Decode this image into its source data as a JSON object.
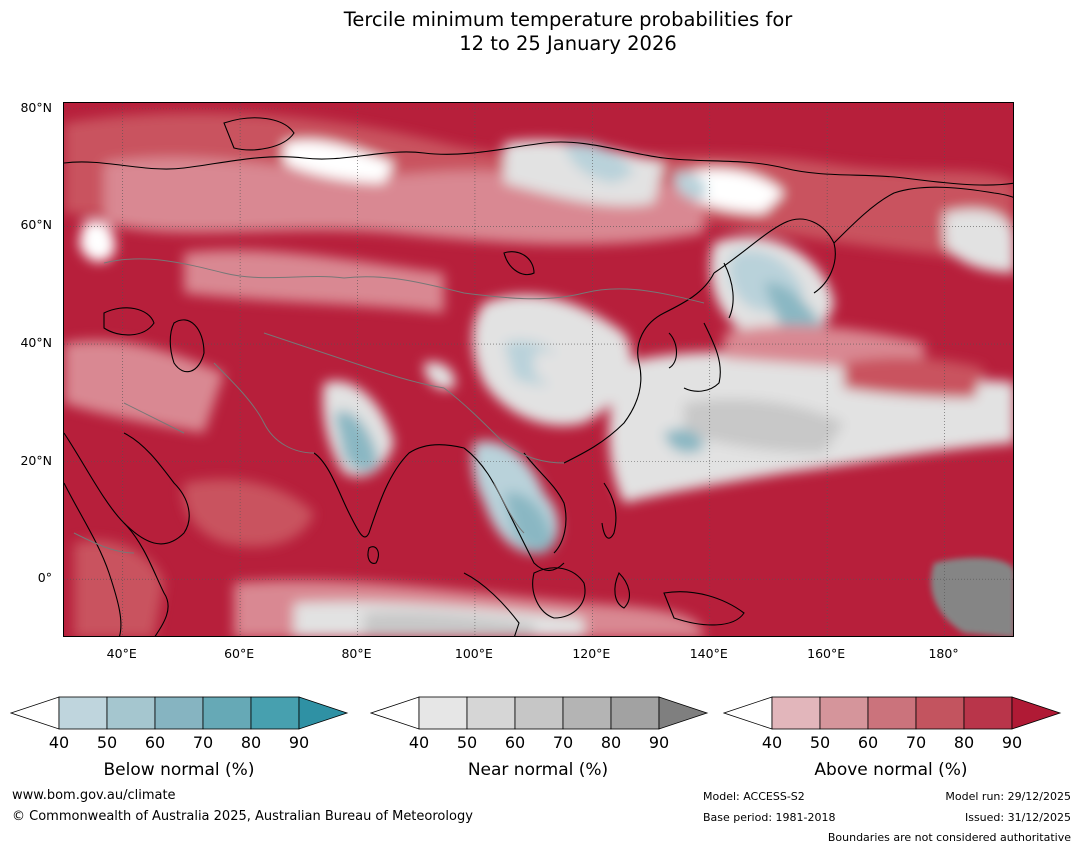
{
  "title": {
    "line1": "Tercile minimum temperature probabilities for",
    "line2": "12 to 25 January 2026"
  },
  "map": {
    "lon_range": [
      30,
      192
    ],
    "lat_range": [
      -10,
      81
    ],
    "lat_ticks": [
      "80°N",
      "60°N",
      "40°N",
      "20°N",
      "0°"
    ],
    "lon_ticks": [
      "40°E",
      "60°E",
      "80°E",
      "100°E",
      "120°E",
      "140°E",
      "160°E",
      "180°"
    ]
  },
  "colorbars": [
    {
      "name": "below",
      "title": "Below normal (%)",
      "ticks": [
        "40",
        "50",
        "60",
        "70",
        "80",
        "90"
      ],
      "colors": [
        "#bfd5dd",
        "#a5c6cf",
        "#86b4c1",
        "#66a9b6",
        "#47a0af",
        "#2f91a4"
      ]
    },
    {
      "name": "near",
      "title": "Near normal (%)",
      "ticks": [
        "40",
        "50",
        "60",
        "70",
        "80",
        "90"
      ],
      "colors": [
        "#e6e6e6",
        "#d6d6d6",
        "#c6c6c6",
        "#b4b4b4",
        "#a2a2a2",
        "#7f7f7f"
      ]
    },
    {
      "name": "above",
      "title": "Above normal (%)",
      "ticks": [
        "40",
        "50",
        "60",
        "70",
        "80",
        "90"
      ],
      "colors": [
        "#e2b6bb",
        "#d5959b",
        "#cb737c",
        "#c3545f",
        "#b9354a",
        "#b01a35"
      ]
    }
  ],
  "footer": {
    "website": "www.bom.gov.au/climate",
    "copyright": "© Commonwealth of Australia 2025, Australian Bureau of Meteorology",
    "model": "Model: ACCESS-S2",
    "base_period": "Base period: 1981-2018",
    "model_run": "Model run: 29/12/2025",
    "issued": "Issued: 31/12/2025",
    "disclaimer": "Boundaries are not considered authoritative"
  },
  "palette": {
    "above_strong": "#b71f3b",
    "above_mid": "#c9525f",
    "above_light": "#d98892",
    "above_faint": "#e5b5bb",
    "near_white": "#ffffff",
    "near_light": "#e2e2e2",
    "near_mid": "#c8c8c8",
    "near_dark": "#858585",
    "below_light": "#b9d2da",
    "below_mid": "#8ab7c3",
    "below_dark": "#4ea2b1"
  }
}
